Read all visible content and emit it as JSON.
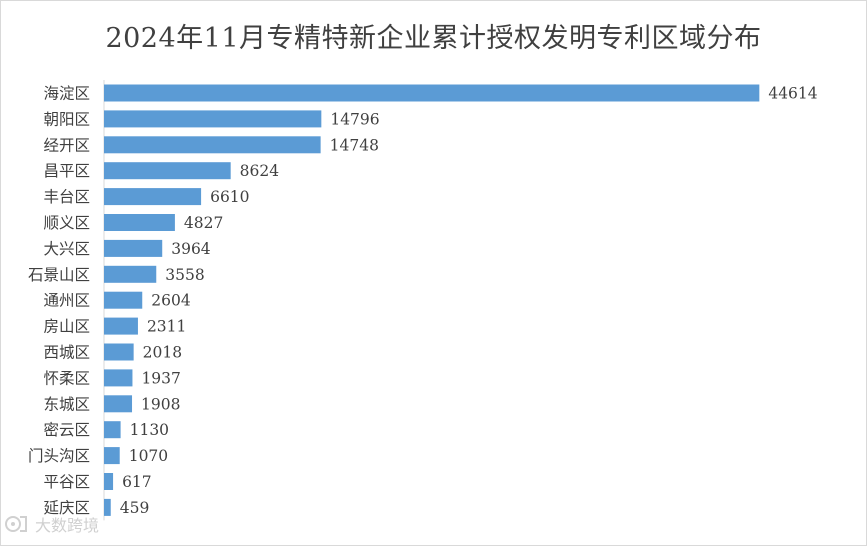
{
  "chart_data": {
    "type": "bar",
    "orientation": "horizontal",
    "title": "2024年11月专精特新企业累计授权发明专利区域分布",
    "categories": [
      "海淀区",
      "朝阳区",
      "经开区",
      "昌平区",
      "丰台区",
      "顺义区",
      "大兴区",
      "石景山区",
      "通州区",
      "房山区",
      "西城区",
      "怀柔区",
      "东城区",
      "密云区",
      "门头沟区",
      "平谷区",
      "延庆区"
    ],
    "values": [
      44614,
      14796,
      14748,
      8624,
      6610,
      4827,
      3964,
      3558,
      2604,
      2311,
      2018,
      1937,
      1908,
      1130,
      1070,
      617,
      459
    ],
    "xlim": [
      0,
      45000
    ],
    "grid": false,
    "legend": false,
    "bar_color": "#5b9bd5"
  },
  "watermark": {
    "text": "大数跨境"
  }
}
